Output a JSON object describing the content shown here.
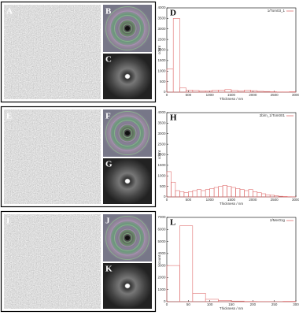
{
  "image_labels": [
    "A",
    "B",
    "C",
    "E",
    "F",
    "G",
    "I",
    "J",
    "K"
  ],
  "chart_data": [
    {
      "type": "histogram",
      "panel_label": "D",
      "legend": "1/Tom03_1",
      "xlabel": "Thickness / nm",
      "ylabel": "count",
      "color": "#e07070",
      "bins": [
        0,
        150,
        300,
        450,
        600,
        750,
        900,
        1050,
        1200,
        1350,
        1500,
        1650,
        1800,
        1950,
        2100,
        2250,
        2400,
        2550,
        2700,
        2850,
        3000
      ],
      "values": [
        1100,
        3500,
        200,
        100,
        80,
        60,
        50,
        90,
        100,
        120,
        80,
        60,
        100,
        70,
        40,
        30,
        20,
        10,
        10,
        20
      ],
      "xlim": [
        0,
        3000
      ],
      "xticks": [
        0,
        500,
        1000,
        1500,
        2000,
        2500,
        3000
      ],
      "ylim": [
        0,
        4000
      ],
      "yticks": [
        0,
        500,
        1000,
        1500,
        2000,
        2500,
        3000,
        3500,
        4000
      ]
    },
    {
      "type": "histogram",
      "panel_label": "H",
      "legend": "2b/m_1/Tom001",
      "xlabel": "Thickness / nm",
      "ylabel": "count",
      "color": "#e07070",
      "bins": [
        0,
        100,
        200,
        300,
        400,
        500,
        600,
        700,
        800,
        900,
        1000,
        1100,
        1200,
        1300,
        1400,
        1500,
        1600,
        1700,
        1800,
        1900,
        2000,
        2100,
        2200,
        2300,
        2400,
        2500,
        2600,
        2700,
        2800,
        2900,
        3000
      ],
      "values": [
        1200,
        700,
        300,
        250,
        200,
        250,
        300,
        350,
        300,
        350,
        400,
        450,
        500,
        550,
        500,
        450,
        400,
        350,
        300,
        350,
        250,
        200,
        150,
        100,
        80,
        50,
        30,
        20,
        10,
        5
      ],
      "xlim": [
        0,
        3000
      ],
      "xticks": [
        0,
        500,
        1000,
        1500,
        2000,
        2500,
        3000
      ],
      "ylim": [
        0,
        4000
      ],
      "yticks": [
        0,
        500,
        1000,
        1500,
        2000,
        2500,
        3000,
        3500,
        4000
      ]
    },
    {
      "type": "histogram",
      "panel_label": "L",
      "legend": "2/Mer01g",
      "xlabel": "Thickness / nm",
      "ylabel": "count",
      "color": "#e07070",
      "bins": [
        0,
        30,
        60,
        90,
        120,
        150,
        180,
        210,
        240,
        270,
        300
      ],
      "values": [
        3000,
        6300,
        700,
        200,
        100,
        50,
        20,
        10,
        5,
        30
      ],
      "xlim": [
        0,
        300
      ],
      "xticks": [
        0,
        50,
        100,
        150,
        200,
        250,
        300
      ],
      "ylim": [
        0,
        7000
      ],
      "yticks": [
        0,
        1000,
        2000,
        3000,
        4000,
        5000,
        6000,
        7000
      ]
    }
  ]
}
